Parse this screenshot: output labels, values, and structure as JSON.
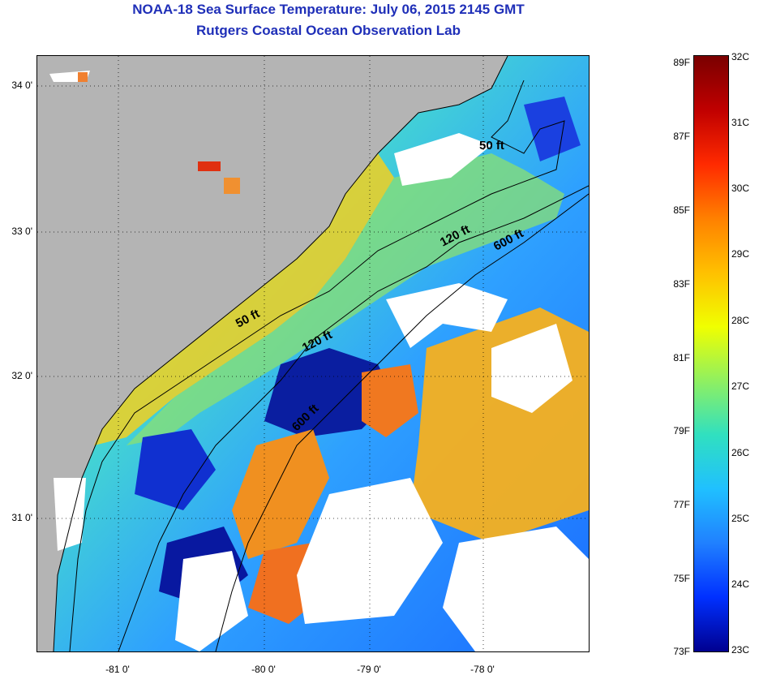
{
  "header": {
    "title_line1": "NOAA-18 Sea Surface Temperature:  July 06, 2015 2145 GMT",
    "title_line2": "Rutgers Coastal Ocean Observation Lab"
  },
  "axes": {
    "lat_labels": [
      "34 0'",
      "33 0'",
      "32 0'",
      "31 0'"
    ],
    "lon_labels": [
      "-81 0'",
      "-80 0'",
      "-79 0'",
      "-78 0'"
    ]
  },
  "contours": {
    "labels": [
      "50 ft",
      "120 ft",
      "600 ft",
      "50 ft",
      "120 ft",
      "600 ft"
    ]
  },
  "colorbar": {
    "f_labels": [
      "89F",
      "87F",
      "85F",
      "83F",
      "81F",
      "79F",
      "77F",
      "75F",
      "73F"
    ],
    "c_labels": [
      "32C",
      "31C",
      "30C",
      "29C",
      "28C",
      "27C",
      "26C",
      "25C",
      "24C",
      "23C"
    ],
    "colors": [
      "#7a0000",
      "#c00000",
      "#ff2a00",
      "#ff8000",
      "#ffc000",
      "#f0ff00",
      "#90f060",
      "#30e0c0",
      "#20c0ff",
      "#2080ff",
      "#0030ff",
      "#000090"
    ]
  },
  "land_color": "#b4b4b4"
}
